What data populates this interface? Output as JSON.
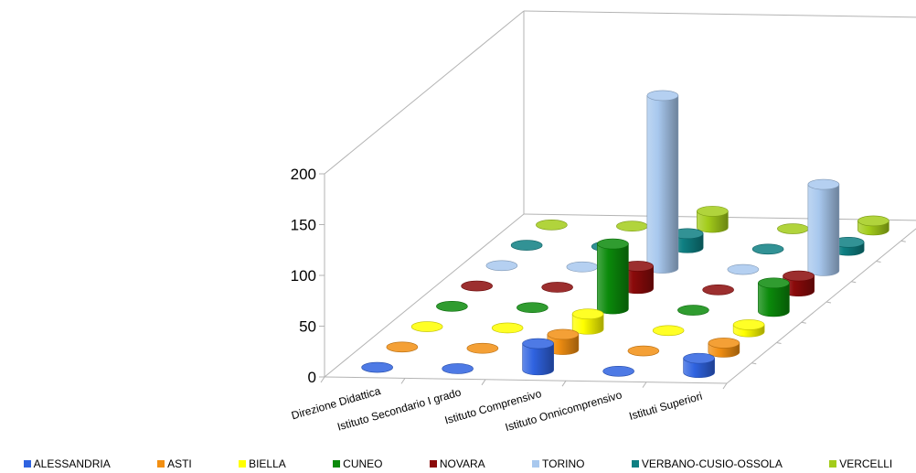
{
  "chart_data": {
    "type": "bar",
    "subtype": "3d-cylinder",
    "title": "",
    "xlabel": "",
    "ylabel": "",
    "ylim": [
      0,
      200
    ],
    "yticks": [
      "0",
      "50",
      "100",
      "150",
      "200"
    ],
    "grid": false,
    "legend_position": "bottom",
    "categories": [
      "Direzione Didattica",
      "Istituto Secondario I grado",
      "Istituto Comprensivo",
      "Istituto Onnicomprensivo",
      "Istituti Superiori"
    ],
    "series": [
      {
        "name": "ALESSANDRIA",
        "color": "#2f63e0",
        "values": [
          0,
          0,
          26,
          0,
          14
        ]
      },
      {
        "name": "ASTI",
        "color": "#f28f12",
        "values": [
          0,
          0,
          15,
          0,
          9
        ]
      },
      {
        "name": "BIELLA",
        "color": "#ffff00",
        "values": [
          0,
          0,
          15,
          0,
          7
        ]
      },
      {
        "name": "CUNEO",
        "color": "#0b8a0b",
        "values": [
          0,
          0,
          64,
          0,
          28
        ]
      },
      {
        "name": "NOVARA",
        "color": "#8b0a0a",
        "values": [
          0,
          0,
          22,
          0,
          15
        ]
      },
      {
        "name": "TORINO",
        "color": "#a8c8ee",
        "values": [
          0,
          0,
          170,
          0,
          85
        ]
      },
      {
        "name": "VERBANO-CUSIO-OSSOLA",
        "color": "#0e7f82",
        "values": [
          0,
          0,
          14,
          0,
          8
        ]
      },
      {
        "name": "VERCELLI",
        "color": "#a3cc1a",
        "values": [
          0,
          0,
          16,
          0,
          9
        ]
      }
    ]
  }
}
